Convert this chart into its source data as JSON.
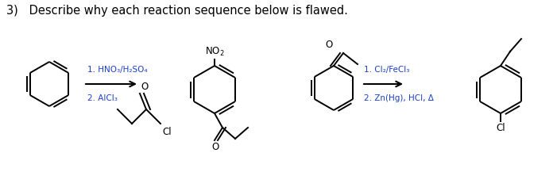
{
  "title_text": "3)   Describe why each reaction sequence below is flawed.",
  "title_fontsize": 10.5,
  "title_color": "#000000",
  "background_color": "#ffffff",
  "reagent1_line1": "1. HNO₃/H₂SO₄",
  "reagent1_line2": "2. AlCl₃",
  "reagent2_line1": "1. Cl₂/FeCl₃",
  "reagent2_line2": "2. Zn(Hg), HCl, Δ",
  "text_color": "#1a3fcc",
  "struct_color": "#000000",
  "figsize": [
    7.01,
    2.41
  ],
  "dpi": 100
}
